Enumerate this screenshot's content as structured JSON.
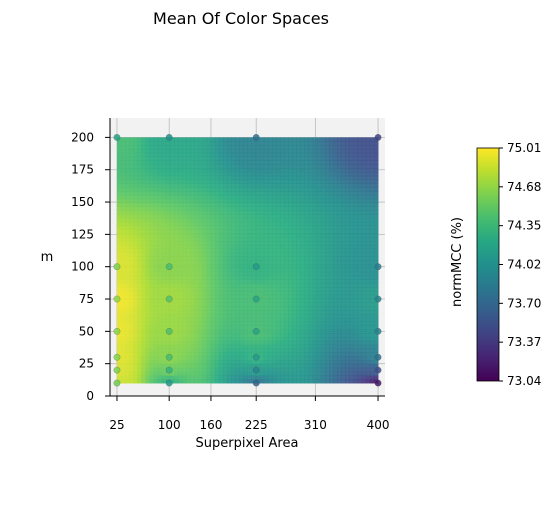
{
  "chart_data": {
    "type": "heatmap",
    "title": "Mean Of Color Spaces",
    "xlabel": "Superpixel Area",
    "ylabel": "m",
    "colorbar_label": "normMCC (%)",
    "colormap": "viridis",
    "x_ticks": [
      25,
      100,
      160,
      225,
      310,
      400
    ],
    "y_ticks": [
      0,
      25,
      50,
      75,
      100,
      125,
      150,
      175,
      200
    ],
    "colorbar_ticks": [
      "73.04",
      "73.37",
      "73.70",
      "74.02",
      "74.35",
      "74.68",
      "75.01"
    ],
    "xlim": [
      15,
      410
    ],
    "ylim": [
      0,
      215
    ],
    "surface_xlim": [
      25,
      400
    ],
    "surface_ylim": [
      10,
      200
    ],
    "vmin": 73.04,
    "vmax": 75.01,
    "sample_points": [
      {
        "x": 25,
        "y": 10,
        "v": 74.85
      },
      {
        "x": 25,
        "y": 20,
        "v": 74.9
      },
      {
        "x": 25,
        "y": 30,
        "v": 74.92
      },
      {
        "x": 25,
        "y": 50,
        "v": 74.95
      },
      {
        "x": 25,
        "y": 75,
        "v": 74.97
      },
      {
        "x": 25,
        "y": 100,
        "v": 74.9
      },
      {
        "x": 25,
        "y": 200,
        "v": 74.4
      },
      {
        "x": 100,
        "y": 10,
        "v": 74.3
      },
      {
        "x": 100,
        "y": 20,
        "v": 74.55
      },
      {
        "x": 100,
        "y": 30,
        "v": 74.65
      },
      {
        "x": 100,
        "y": 50,
        "v": 74.7
      },
      {
        "x": 100,
        "y": 75,
        "v": 74.72
      },
      {
        "x": 100,
        "y": 100,
        "v": 74.65
      },
      {
        "x": 100,
        "y": 200,
        "v": 74.2
      },
      {
        "x": 225,
        "y": 10,
        "v": 73.8
      },
      {
        "x": 225,
        "y": 20,
        "v": 74.1
      },
      {
        "x": 225,
        "y": 30,
        "v": 74.3
      },
      {
        "x": 225,
        "y": 50,
        "v": 74.4
      },
      {
        "x": 225,
        "y": 75,
        "v": 74.4
      },
      {
        "x": 225,
        "y": 100,
        "v": 74.3
      },
      {
        "x": 225,
        "y": 200,
        "v": 73.9
      },
      {
        "x": 400,
        "y": 10,
        "v": 73.2
      },
      {
        "x": 400,
        "y": 20,
        "v": 73.6
      },
      {
        "x": 400,
        "y": 30,
        "v": 73.9
      },
      {
        "x": 400,
        "y": 50,
        "v": 74.05
      },
      {
        "x": 400,
        "y": 75,
        "v": 74.1
      },
      {
        "x": 400,
        "y": 100,
        "v": 74.0
      },
      {
        "x": 400,
        "y": 200,
        "v": 73.5
      }
    ],
    "grid": true
  }
}
